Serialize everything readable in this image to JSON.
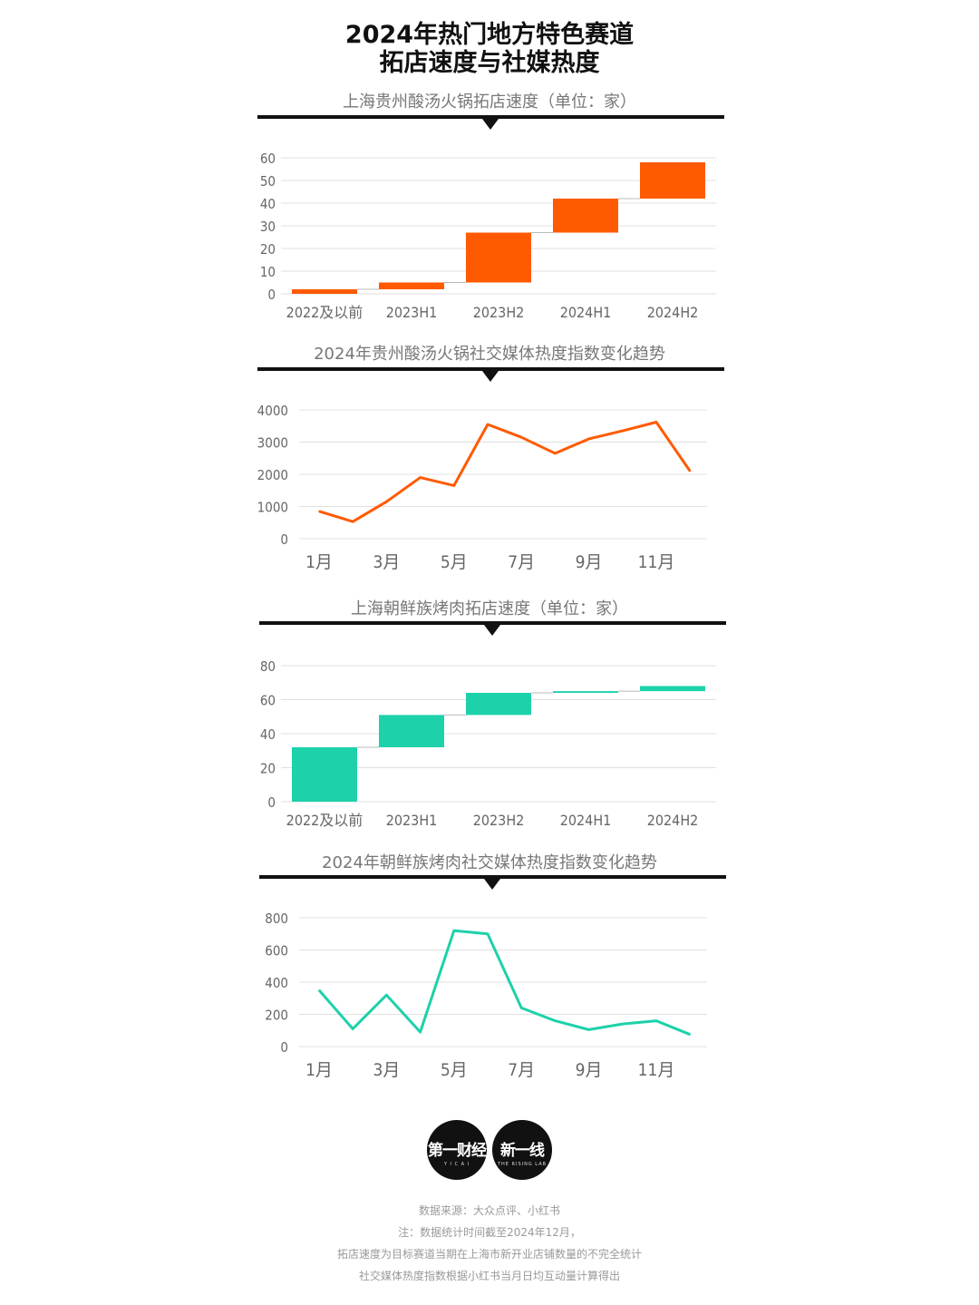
{
  "header": {
    "title_line1": "2024年热门地方特色赛道",
    "title_line2": "拓店速度与社媒热度"
  },
  "colors": {
    "orange": "#FF5A00",
    "teal": "#1DD1AA",
    "grid": "#E0E0E0",
    "connector": "#BBBBBB"
  },
  "chart_data": [
    {
      "type": "bar",
      "subtype": "waterfall",
      "title": "上海贵州酸汤火锅拓店速度（单位：家）",
      "categories": [
        "2022及以前",
        "2023H1",
        "2023H2",
        "2024H1",
        "2024H2"
      ],
      "base": [
        0,
        2,
        5,
        27,
        42
      ],
      "values": [
        2,
        3,
        22,
        15,
        16
      ],
      "ylim": [
        0,
        60
      ],
      "yticks": [
        0,
        10,
        20,
        30,
        40,
        50,
        60
      ],
      "color": "#FF5A00"
    },
    {
      "type": "line",
      "title": "2024年贵州酸汤火锅社交媒体热度指数变化趋势",
      "x": [
        "1月",
        "2月",
        "3月",
        "4月",
        "5月",
        "6月",
        "7月",
        "8月",
        "9月",
        "10月",
        "11月",
        "12月"
      ],
      "x_tick_labels": [
        "1月",
        "3月",
        "5月",
        "7月",
        "9月",
        "11月"
      ],
      "values": [
        850,
        530,
        1150,
        1900,
        1650,
        3550,
        3150,
        2650,
        3100,
        3350,
        3620,
        2100
      ],
      "ylim": [
        0,
        4000
      ],
      "yticks": [
        0,
        1000,
        2000,
        3000,
        4000
      ],
      "color": "#FF5A00"
    },
    {
      "type": "bar",
      "subtype": "waterfall",
      "title": "上海朝鲜族烤肉拓店速度（单位：家）",
      "categories": [
        "2022及以前",
        "2023H1",
        "2023H2",
        "2024H1",
        "2024H2"
      ],
      "base": [
        0,
        32,
        51,
        64,
        65
      ],
      "values": [
        32,
        19,
        13,
        1,
        3
      ],
      "ylim": [
        0,
        80
      ],
      "yticks": [
        0,
        20,
        40,
        60,
        80
      ],
      "color": "#1DD1AA"
    },
    {
      "type": "line",
      "title": "2024年朝鲜族烤肉社交媒体热度指数变化趋势",
      "x": [
        "1月",
        "2月",
        "3月",
        "4月",
        "5月",
        "6月",
        "7月",
        "8月",
        "9月",
        "10月",
        "11月",
        "12月"
      ],
      "x_tick_labels": [
        "1月",
        "3月",
        "5月",
        "7月",
        "9月",
        "11月"
      ],
      "values": [
        350,
        110,
        320,
        90,
        720,
        700,
        240,
        160,
        105,
        140,
        160,
        75
      ],
      "ylim": [
        0,
        800
      ],
      "yticks": [
        0,
        200,
        400,
        600,
        800
      ],
      "color": "#1DD1AA"
    }
  ],
  "logos": {
    "logo1": {
      "main": "第一财经",
      "sub": "Y I C A I"
    },
    "logo2": {
      "main": "新一线",
      "sub": "THE RISING LAB"
    }
  },
  "footer": {
    "line1": "数据来源：大众点评、小红书",
    "line2": "注：数据统计时间截至2024年12月，",
    "line3": "拓店速度为目标赛道当期在上海市新开业店铺数量的不完全统计",
    "line4": "社交媒体热度指数根据小红书当月日均互动量计算得出"
  }
}
